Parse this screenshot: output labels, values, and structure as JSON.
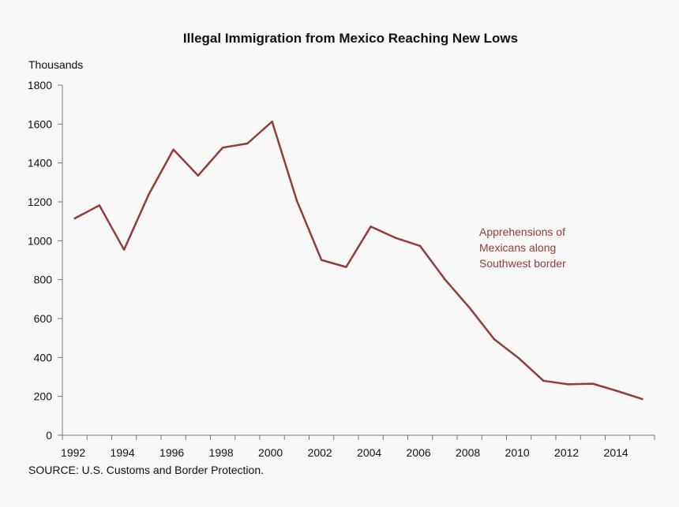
{
  "chart_data": {
    "type": "line",
    "title": "Illegal Immigration from Mexico Reaching New Lows",
    "ylabel": "Thousands",
    "xlabel": "",
    "ylim": [
      0,
      1800
    ],
    "xlim": [
      1992,
      2016
    ],
    "yticks": [
      0,
      200,
      400,
      600,
      800,
      1000,
      1200,
      1400,
      1600,
      1800
    ],
    "xticks": [
      1992,
      1994,
      1996,
      1998,
      2000,
      2002,
      2004,
      2006,
      2008,
      2010,
      2012,
      2014
    ],
    "grid": false,
    "series": [
      {
        "name": "Apprehensions of Mexicans along Southwest border",
        "color": "#963a3a",
        "x": [
          1992,
          1993,
          1994,
          1995,
          1996,
          1997,
          1998,
          1999,
          2000,
          2001,
          2002,
          2003,
          2004,
          2005,
          2006,
          2007,
          2008,
          2009,
          2010,
          2011,
          2012,
          2013,
          2014,
          2015
        ],
        "values": [
          1115,
          1182,
          954,
          1238,
          1469,
          1335,
          1479,
          1500,
          1613,
          1207,
          901,
          865,
          1073,
          1015,
          973,
          802,
          656,
          494,
          396,
          280,
          262,
          265,
          227,
          186
        ]
      }
    ],
    "annotation": {
      "lines": [
        "Apprehensions of",
        "Mexicans along",
        "Southwest border"
      ],
      "color": "#963a3a"
    },
    "source": "SOURCE: U.S. Customs and Border Protection."
  }
}
